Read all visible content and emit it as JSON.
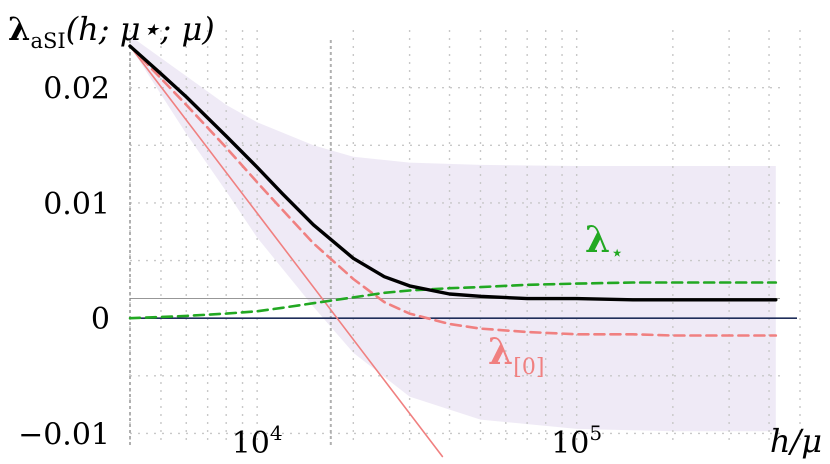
{
  "chart_data": {
    "type": "line",
    "title": "λaSI(h; μ⋆; μ)",
    "title_parts": {
      "symbol": "λ",
      "subscript": "aSI",
      "args": "(h; μ⋆; μ)"
    },
    "xlabel": "h/μ",
    "xscale": "log",
    "xlim": [
      4000,
      500000
    ],
    "ylim": [
      -0.011,
      0.025
    ],
    "y_ticks": [
      {
        "value": 0.02,
        "label": "0.02"
      },
      {
        "value": 0.01,
        "label": "0.01"
      },
      {
        "value": 0,
        "label": "0"
      },
      {
        "value": -0.01,
        "label": "−0.01"
      }
    ],
    "x_ticks": [
      {
        "value": 10000,
        "base": "10",
        "exp": "4"
      },
      {
        "value": 100000,
        "base": "10",
        "exp": "5"
      }
    ],
    "grid": "dotted",
    "x": [
      4000,
      5000,
      6000,
      8000,
      10000,
      12000,
      15000,
      20000,
      25000,
      30000,
      40000,
      50000,
      70000,
      100000,
      150000,
      200000,
      300000,
      420000
    ],
    "series": [
      {
        "name": "",
        "color": "#000000",
        "style": "solid",
        "values": [
          0.0236,
          0.0212,
          0.0192,
          0.0158,
          0.0131,
          0.0108,
          0.0081,
          0.0052,
          0.0036,
          0.0028,
          0.0021,
          0.0019,
          0.0017,
          0.0017,
          0.0016,
          0.0016,
          0.0016,
          0.0016
        ]
      },
      {
        "name": "λ⋆",
        "label_text": "λ",
        "label_sub": "⋆",
        "color": "#22a822",
        "style": "dashed",
        "values": [
          0.0,
          0.0001,
          0.0002,
          0.0004,
          0.0006,
          0.0009,
          0.0013,
          0.0018,
          0.0022,
          0.0024,
          0.0026,
          0.0027,
          0.0029,
          0.003,
          0.0031,
          0.0031,
          0.0031,
          0.0031
        ]
      },
      {
        "name": "λ[0]",
        "label_text": "λ",
        "label_sub": "[0]",
        "color": "#f08080",
        "style": "dashed",
        "values": [
          0.0236,
          0.0208,
          0.0185,
          0.0148,
          0.0118,
          0.0094,
          0.0065,
          0.0034,
          0.0014,
          0.0004,
          -0.0005,
          -0.0009,
          -0.0012,
          -0.0014,
          -0.0014,
          -0.0015,
          -0.0015,
          -0.0015
        ]
      },
      {
        "name": "",
        "color": "#f08080",
        "style": "solid",
        "role": "tangent line",
        "x": [
          4000,
          38000
        ],
        "values": [
          0.0236,
          -0.012
        ]
      }
    ],
    "band": {
      "color": "#ece6f4",
      "x": [
        4000,
        6000,
        8000,
        10000,
        15000,
        20000,
        30000,
        50000,
        100000,
        200000,
        420000
      ],
      "upper": [
        0.0245,
        0.021,
        0.0185,
        0.017,
        0.015,
        0.014,
        0.0135,
        0.0133,
        0.0132,
        0.0132,
        0.0132
      ],
      "lower": [
        0.0236,
        0.016,
        0.011,
        0.007,
        0.001,
        -0.003,
        -0.0068,
        -0.0088,
        -0.0096,
        -0.0098,
        -0.0098
      ]
    },
    "reference_lines": [
      {
        "axis": "y",
        "value": 0,
        "color": "#1f2d5a"
      },
      {
        "axis": "y",
        "value": 0.0017,
        "color": "#888888"
      }
    ]
  }
}
